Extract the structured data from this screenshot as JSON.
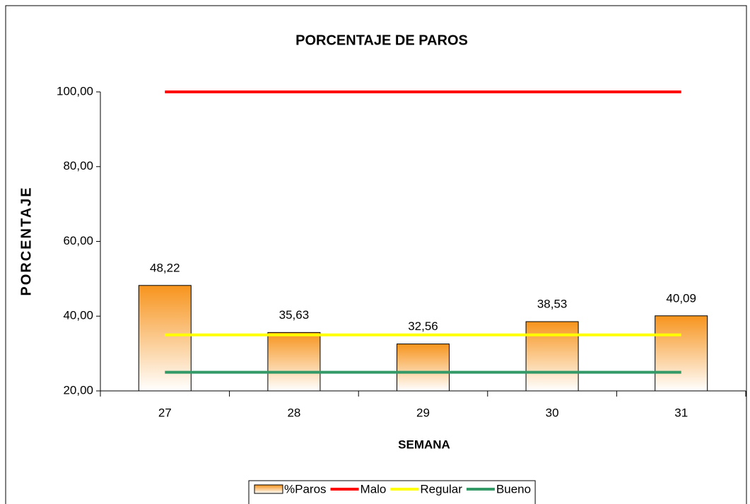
{
  "chart_data": {
    "type": "bar",
    "title": "PORCENTAJE DE PAROS",
    "x_label": "SEMANA",
    "y_label": "PORCENTAJE",
    "categories": [
      "27",
      "28",
      "29",
      "30",
      "31"
    ],
    "series": [
      {
        "name": "%Paros",
        "type": "bar",
        "color": "#f7941d",
        "values": [
          48.22,
          35.63,
          32.56,
          38.53,
          40.09
        ],
        "value_labels": [
          "48,22",
          "35,63",
          "32,56",
          "38,53",
          "40,09"
        ]
      },
      {
        "name": "Malo",
        "type": "line",
        "color": "#ff0000",
        "values": [
          100,
          100,
          100,
          100,
          100
        ]
      },
      {
        "name": "Regular",
        "type": "line",
        "color": "#ffff00",
        "values": [
          35,
          35,
          35,
          35,
          35
        ]
      },
      {
        "name": "Bueno",
        "type": "line",
        "color": "#339966",
        "values": [
          25,
          25,
          25,
          25,
          25
        ]
      }
    ],
    "ylim": [
      20,
      100
    ],
    "yticks": [
      {
        "value": 20,
        "label": "20,00"
      },
      {
        "value": 40,
        "label": "40,00"
      },
      {
        "value": 60,
        "label": "60,00"
      },
      {
        "value": 80,
        "label": "80,00"
      },
      {
        "value": 100,
        "label": "100,00"
      }
    ],
    "legend": "bottom"
  }
}
